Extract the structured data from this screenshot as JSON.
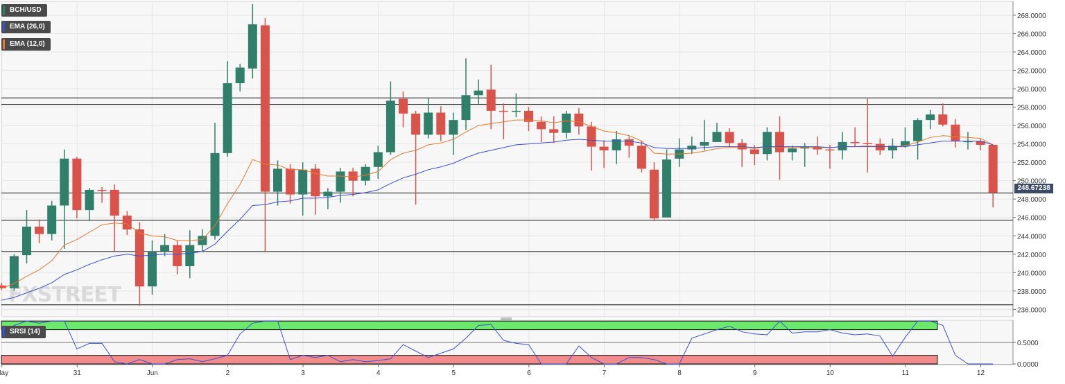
{
  "symbol": "BCH/USD",
  "indicators": {
    "ema26": {
      "label": "EMA (26,0)",
      "color": "#3a4fd6"
    },
    "ema12": {
      "label": "EMA (12,0)",
      "color": "#e8792c"
    },
    "srsi": {
      "label": "SRSI (14)",
      "color": "#3a4fd6"
    }
  },
  "watermark": "FXSTREET",
  "last_price_label": "248.67238",
  "colors": {
    "up": "#2f7f6b",
    "down": "#d9534a",
    "zone_high": "#6ce86c",
    "zone_low": "#f28b8b"
  },
  "chart_data": {
    "type": "candlestick",
    "ylim": [
      235.2,
      269.5
    ],
    "yticks": [
      "236.0000",
      "238.0000",
      "240.0000",
      "242.0000",
      "244.0000",
      "246.0000",
      "248.0000",
      "250.0000",
      "252.0000",
      "254.0000",
      "256.0000",
      "258.0000",
      "260.0000",
      "262.0000",
      "264.0000",
      "266.0000",
      "268.0000"
    ],
    "xticks": [
      {
        "label": "May",
        "t": -0.33
      },
      {
        "label": "31",
        "t": 0.67
      },
      {
        "label": "Jun",
        "t": 1.67
      },
      {
        "label": "2",
        "t": 2.67
      },
      {
        "label": "3",
        "t": 3.67
      },
      {
        "label": "4",
        "t": 4.67
      },
      {
        "label": "5",
        "t": 5.67
      },
      {
        "label": "6",
        "t": 6.67
      },
      {
        "label": "7",
        "t": 7.67
      },
      {
        "label": "8",
        "t": 8.67
      },
      {
        "label": "9",
        "t": 9.67
      },
      {
        "label": "10",
        "t": 10.67
      },
      {
        "label": "11",
        "t": 11.67
      },
      {
        "label": "12",
        "t": 12.67
      }
    ],
    "horizontal_lines": [
      259.0,
      258.3,
      248.67,
      245.7,
      242.3,
      236.5
    ],
    "candles": [
      [
        238.6,
        238.3,
        238.9,
        238.1
      ],
      [
        238.3,
        241.8,
        242.0,
        238.0
      ],
      [
        241.9,
        245.0,
        246.8,
        241.0
      ],
      [
        245.0,
        244.2,
        245.8,
        243.2
      ],
      [
        244.2,
        247.3,
        247.8,
        243.5
      ],
      [
        247.3,
        252.4,
        253.4,
        242.6
      ],
      [
        252.4,
        246.8,
        252.6,
        245.9
      ],
      [
        246.8,
        249.0,
        249.2,
        245.6
      ],
      [
        249.0,
        248.9,
        249.3,
        247.6
      ],
      [
        249.0,
        246.2,
        249.6,
        242.3
      ],
      [
        246.2,
        244.7,
        246.7,
        244.1
      ],
      [
        244.7,
        238.5,
        245.5,
        236.4
      ],
      [
        238.5,
        242.3,
        243.5,
        237.6
      ],
      [
        242.3,
        243.0,
        244.2,
        241.8
      ],
      [
        243.0,
        240.7,
        243.5,
        239.8
      ],
      [
        240.7,
        243.0,
        244.6,
        239.4
      ],
      [
        243.0,
        244.0,
        244.7,
        242.3
      ],
      [
        244.0,
        253.0,
        256.3,
        243.6
      ],
      [
        253.0,
        260.6,
        263.0,
        252.6
      ],
      [
        260.6,
        262.3,
        262.7,
        259.7
      ],
      [
        262.2,
        267.0,
        269.2,
        261.1
      ],
      [
        266.9,
        248.8,
        267.7,
        242.2
      ],
      [
        248.8,
        251.3,
        252.2,
        247.3
      ],
      [
        251.3,
        248.5,
        251.8,
        247.5
      ],
      [
        248.5,
        251.2,
        252.0,
        246.2
      ],
      [
        251.3,
        248.3,
        251.8,
        246.3
      ],
      [
        248.3,
        248.8,
        249.2,
        246.9
      ],
      [
        248.8,
        251.0,
        251.4,
        247.6
      ],
      [
        251.0,
        250.0,
        251.4,
        248.3
      ],
      [
        250.0,
        251.5,
        251.8,
        249.5
      ],
      [
        251.5,
        253.1,
        253.8,
        250.2
      ],
      [
        253.1,
        258.7,
        260.8,
        252.8
      ],
      [
        258.9,
        257.3,
        259.7,
        255.8
      ],
      [
        257.3,
        255.0,
        257.6,
        247.4
      ],
      [
        255.0,
        257.4,
        259.0,
        254.6
      ],
      [
        257.4,
        255.0,
        258.1,
        254.3
      ],
      [
        255.0,
        256.6,
        257.4,
        252.8
      ],
      [
        256.6,
        259.3,
        263.3,
        255.5
      ],
      [
        259.3,
        259.8,
        261.0,
        258.3
      ],
      [
        259.9,
        257.6,
        262.6,
        255.6
      ],
      [
        257.6,
        257.5,
        258.4,
        254.5
      ],
      [
        257.5,
        257.6,
        259.5,
        256.9
      ],
      [
        257.6,
        256.4,
        258.0,
        255.4
      ],
      [
        256.4,
        255.6,
        257.0,
        254.2
      ],
      [
        255.6,
        255.2,
        257.0,
        254.1
      ],
      [
        255.2,
        257.3,
        257.6,
        254.6
      ],
      [
        257.3,
        255.9,
        257.9,
        255.0
      ],
      [
        255.9,
        253.7,
        256.4,
        251.1
      ],
      [
        253.7,
        253.3,
        254.4,
        251.4
      ],
      [
        253.3,
        254.5,
        255.4,
        251.8
      ],
      [
        254.5,
        253.8,
        254.8,
        252.5
      ],
      [
        253.8,
        251.3,
        254.3,
        250.9
      ],
      [
        251.2,
        245.9,
        252.0,
        245.6
      ],
      [
        246.0,
        252.3,
        253.4,
        246.3
      ],
      [
        252.4,
        253.4,
        254.6,
        251.5
      ],
      [
        253.4,
        253.8,
        254.8,
        252.9
      ],
      [
        253.8,
        254.2,
        256.6,
        253.3
      ],
      [
        254.2,
        255.3,
        256.3,
        254.2
      ],
      [
        255.3,
        254.1,
        255.7,
        253.7
      ],
      [
        254.1,
        253.4,
        254.5,
        251.5
      ],
      [
        253.4,
        252.9,
        253.9,
        251.7
      ],
      [
        252.9,
        255.3,
        255.8,
        252.2
      ],
      [
        255.3,
        253.1,
        257.0,
        250.1
      ],
      [
        253.1,
        253.5,
        253.8,
        252.2
      ],
      [
        253.5,
        253.7,
        254.1,
        251.5
      ],
      [
        253.7,
        253.4,
        254.8,
        252.8
      ],
      [
        253.4,
        253.3,
        253.9,
        251.3
      ],
      [
        253.3,
        254.2,
        255.3,
        252.3
      ],
      [
        254.2,
        254.1,
        255.8,
        253.7
      ],
      [
        254.1,
        254.0,
        258.9,
        250.9
      ],
      [
        254.0,
        253.3,
        254.6,
        252.8
      ],
      [
        253.3,
        253.8,
        254.6,
        252.4
      ],
      [
        253.8,
        254.3,
        255.8,
        253.6
      ],
      [
        254.3,
        256.6,
        256.8,
        252.3
      ],
      [
        256.6,
        257.2,
        257.7,
        255.6
      ],
      [
        257.2,
        256.1,
        258.4,
        255.9
      ],
      [
        256.1,
        254.3,
        256.7,
        253.6
      ],
      [
        254.3,
        254.3,
        255.3,
        253.4
      ],
      [
        254.3,
        253.9,
        254.6,
        253.3
      ],
      [
        253.9,
        248.7,
        253.9,
        247.1
      ]
    ],
    "series": [
      {
        "name": "EMA (12,0)",
        "values": [
          238.3,
          238.8,
          239.6,
          240.3,
          241.3,
          243.0,
          243.6,
          244.4,
          245.2,
          245.4,
          245.3,
          244.3,
          244.0,
          243.9,
          243.5,
          243.5,
          243.6,
          245.1,
          247.5,
          249.6,
          252.3,
          251.8,
          251.7,
          251.2,
          251.2,
          250.8,
          250.5,
          250.5,
          250.4,
          250.6,
          251.0,
          252.3,
          253.0,
          253.3,
          253.9,
          254.1,
          254.5,
          255.3,
          256.0,
          256.2,
          256.4,
          256.6,
          256.6,
          256.5,
          256.3,
          256.5,
          256.4,
          255.9,
          255.4,
          255.2,
          254.9,
          254.3,
          253.0,
          252.9,
          252.9,
          253.0,
          253.2,
          253.5,
          253.6,
          253.6,
          253.5,
          253.7,
          253.6,
          253.6,
          253.6,
          253.6,
          253.6,
          253.7,
          253.7,
          253.8,
          253.7,
          253.7,
          253.8,
          254.2,
          254.7,
          254.9,
          254.8,
          254.7,
          254.6,
          253.9
        ]
      },
      {
        "name": "EMA (26,0)",
        "values": [
          237.0,
          237.3,
          237.8,
          238.3,
          238.9,
          239.8,
          240.3,
          240.9,
          241.4,
          241.8,
          242.0,
          241.8,
          241.9,
          242.0,
          242.0,
          242.1,
          242.3,
          243.1,
          244.5,
          245.8,
          247.3,
          247.4,
          247.7,
          247.8,
          248.1,
          248.1,
          248.2,
          248.4,
          248.5,
          248.7,
          249.0,
          249.7,
          250.3,
          250.7,
          251.2,
          251.5,
          251.9,
          252.5,
          253.0,
          253.3,
          253.6,
          253.9,
          254.0,
          254.1,
          254.2,
          254.4,
          254.5,
          254.4,
          254.3,
          254.3,
          254.3,
          254.1,
          253.6,
          253.5,
          253.5,
          253.5,
          253.6,
          253.7,
          253.7,
          253.7,
          253.6,
          253.7,
          253.7,
          253.7,
          253.7,
          253.7,
          253.6,
          253.7,
          253.7,
          253.7,
          253.7,
          253.7,
          253.7,
          253.9,
          254.1,
          254.3,
          254.3,
          254.3,
          254.3,
          253.9
        ]
      },
      {
        "name": "SRSI (14)",
        "values": [
          0.65,
          0.9,
          1.0,
          0.95,
          1.0,
          1.0,
          0.35,
          0.48,
          0.48,
          0.05,
          0.0,
          0.1,
          0.0,
          0.0,
          0.1,
          0.12,
          0.05,
          0.12,
          0.2,
          0.7,
          0.95,
          1.0,
          1.0,
          0.1,
          0.2,
          0.15,
          0.2,
          0.05,
          0.1,
          0.05,
          0.08,
          0.12,
          0.45,
          0.3,
          0.15,
          0.25,
          0.35,
          0.6,
          0.9,
          0.92,
          0.55,
          0.48,
          0.45,
          0.0,
          0.0,
          0.0,
          0.42,
          0.15,
          0.0,
          0.0,
          0.15,
          0.15,
          0.1,
          0.0,
          0.0,
          0.6,
          0.7,
          0.8,
          0.88,
          0.75,
          0.7,
          0.68,
          1.0,
          0.72,
          0.75,
          0.75,
          0.8,
          0.72,
          0.68,
          0.7,
          0.65,
          0.18,
          0.62,
          1.0,
          1.0,
          0.9,
          0.2,
          0.0,
          0.0,
          0.0
        ]
      }
    ],
    "srsi_ylim": [
      0,
      1.02
    ],
    "srsi_yticks": [
      {
        "label": "0.0000",
        "v": 0.0
      },
      {
        "label": "0.5000",
        "v": 0.5
      }
    ],
    "srsi_zones": {
      "high": [
        0.8,
        1.0
      ],
      "low": [
        0.0,
        0.2
      ]
    }
  }
}
